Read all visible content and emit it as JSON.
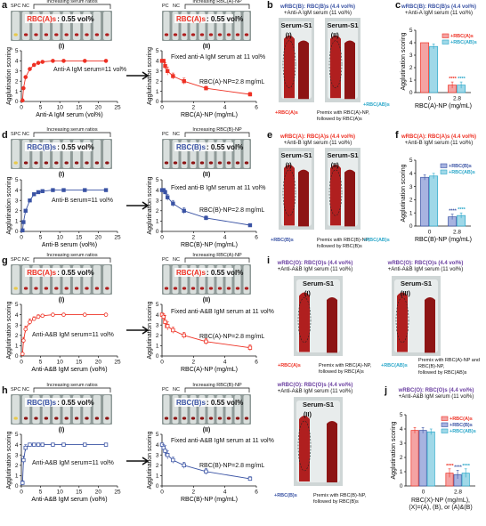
{
  "panels": {
    "a": {
      "letter": "a",
      "band": "Increasing serum ratios",
      "spc": "SPC",
      "nc": "NC",
      "rbc_label": "RBC(A)s",
      "vol": ": 0.55 vol%",
      "roman": "(I)",
      "annot": "Anti-A IgM serum=11 vol%"
    },
    "a2": {
      "pc": "PC",
      "nc": "NC",
      "band": "Increasing RBC(A)-NP",
      "rbc_label": "RBC(A)s",
      "vol": ": 0.55 vol%",
      "roman": "(II)",
      "annot1": "Fixed anti-A IgM serum at 11 vol%",
      "annot2": "RBC(A)-NP=2.8 mg/mL"
    },
    "b": {
      "letter": "b",
      "title1": "wRBC(B): RBC(B)s (4.4 vol%)",
      "title2": "+Anti-A IgM serum (11 vol%)",
      "tube1": "Serum-S1",
      "tube2": "Serum-S1",
      "r1": "(I)",
      "r2": "(II)",
      "lab1": "+RBC(A)s",
      "lab2": "+RBC(AB)s",
      "premix1": "Premix with RBC(A)-NP,",
      "premix2": "followed by RBC(A)s"
    },
    "c": {
      "letter": "c",
      "title1": "wRBC(B): RBC(B)s (4.4 vol%)",
      "title2": "+Anti-A IgM serum (11 vol%)",
      "legend": [
        "+RBC(A)s",
        "+RBC(AB)s"
      ]
    },
    "d": {
      "letter": "d",
      "band": "Increasing serum ratios",
      "spc": "SPC",
      "nc": "NC",
      "rbc_label": "RBC(B)s",
      "vol": ": 0.55 vol%",
      "roman": "(I)",
      "annot": "Anti-B serum=11 vol%"
    },
    "d2": {
      "pc": "PC",
      "nc": "NC",
      "band": "Increasing RBC(B)-NP",
      "rbc_label": "RBC(B)s",
      "vol": ": 0.55 vol%",
      "roman": "(II)",
      "annot1": "Fixed anti-B IgM serum at 11 vol%",
      "annot2": "RBC(B)-NP=2.8 mg/mL"
    },
    "e": {
      "letter": "e",
      "title1": "wRBC(A): RBC(A)s (4.4 vol%)",
      "title2": "+Anti-B IgM serum (11 vol%)",
      "tube1": "Serum-S1",
      "tube2": "Serum-S1",
      "r1": "(I)",
      "r2": "(II)",
      "lab1": "+RBC(B)s",
      "lab2": "+RBC(AB)s",
      "premix1": "Premix with RBC(B)-NP,",
      "premix2": "followed by RBC(B)s"
    },
    "f": {
      "letter": "f",
      "title1": "wRBC(A): RBC(A)s (4.4 vol%)",
      "title2": "+Anti-B IgM serum (11 vol%)",
      "legend": [
        "+RBC(B)s",
        "+RBC(AB)s"
      ]
    },
    "g": {
      "letter": "g",
      "band": "Increasing serum ratios",
      "spc": "SPC",
      "nc": "NC",
      "rbc_label": "RBC(A)s",
      "vol": ": 0.55 vol%",
      "roman": "(I)",
      "annot": "Anti-A&B IgM serum=11 vol%"
    },
    "g2": {
      "pc": "PC",
      "nc": "NC",
      "band": "Increasing RBC(A)-NP",
      "rbc_label": "RBC(A)s",
      "vol": ": 0.55 vol%",
      "roman": "(II)",
      "annot1": "Fixed anti-A&B IgM serum at 11 vol%",
      "annot2": "RBC(A)-NP=2.8 mg/mL"
    },
    "h": {
      "letter": "h",
      "band": "Increasing serum ratios",
      "spc": "SPC",
      "nc": "NC",
      "rbc_label": "RBC(B)s",
      "vol": ": 0.55 vol%",
      "roman": "(I)",
      "annot": "Anti-A&B IgM serum=11 vol%"
    },
    "h2": {
      "pc": "PC",
      "nc": "NC",
      "band": "Increasing RBC(B)-NP",
      "rbc_label": "RBC(B)s",
      "vol": ": 0.55 vol%",
      "roman": "(II)",
      "annot1": "Fixed anti-A&B IgM serum at 11 vol%",
      "annot2": "RBC(B)-NP=2.8 mg/mL"
    },
    "i": {
      "letter": "i",
      "title1": "wRBC(O): RBC(O)s (4.4 vol%)",
      "title2": "+Anti-A&B IgM serum (11 vol%)",
      "tube": "Serum-S1",
      "r1": "(I)",
      "r3": "(III)",
      "lab1": "+RBC(A)s",
      "lab3": "+RBC(AB)s",
      "premix1": "Premix with RBC(A)-NP,",
      "premix2": "followed by RBC(A)s",
      "premix3": "Premix with RBC(A)-NP and",
      "premix4": "RBC(B)-NP,",
      "premix5": "followed by RBC(AB)s"
    },
    "i2": {
      "title1": "wRBC(O): RBC(O)s (4.4 vol%)",
      "title2": "+Anti-A&B IgM serum (11 vol%)",
      "tube": "Serum-S1",
      "r2": "(II)",
      "lab2": "+RBC(B)s",
      "premix1": "Premix with RBC(B)-NP,",
      "premix2": "followed by RBC(B)s"
    },
    "j": {
      "letter": "j",
      "title1": "wRBC(O): RBC(O)s (4.4 vol%)",
      "title2": "+Anti-A&B IgM serum (11 vol%)",
      "legend": [
        "+RBC(A)s",
        "+RBC(B)s",
        "+RBC(AB)s"
      ],
      "xlab1": "RBC(X)-NP (mg/mL),",
      "xlab2": "(X)=(A), (B), or (A)&(B)"
    }
  },
  "chart_data": [
    {
      "id": "a-I",
      "type": "line",
      "xlabel": "Anti-A IgM serum (vol%)",
      "ylabel": "Agglutination scoring",
      "xlim": [
        0,
        25
      ],
      "ylim": [
        0,
        5
      ],
      "xticks": [
        0,
        5,
        10,
        15,
        20,
        25
      ],
      "yticks": [
        0,
        1,
        2,
        3,
        4,
        5
      ],
      "color": "#ee3124",
      "marker": "filled-circle",
      "x": [
        0.3,
        0.55,
        1.1,
        2.2,
        3.3,
        4.4,
        5.5,
        8.2,
        11,
        16.5,
        22
      ],
      "y": [
        0.1,
        1.3,
        2.4,
        3.2,
        3.6,
        3.8,
        3.9,
        4,
        4,
        4,
        4
      ]
    },
    {
      "id": "a-II",
      "type": "line",
      "xlabel": "RBC(A)-NP (mg/mL)",
      "ylabel": "Agglutination scoring",
      "xlim": [
        0,
        6
      ],
      "ylim": [
        0,
        5
      ],
      "xticks": [
        0,
        2,
        4,
        6
      ],
      "yticks": [
        0,
        1,
        2,
        3,
        4,
        5
      ],
      "color": "#ee3124",
      "marker": "filled-square",
      "x": [
        0,
        0.1,
        0.2,
        0.35,
        0.7,
        1.4,
        2.8,
        5.6
      ],
      "y": [
        4,
        4,
        3.5,
        3,
        2.5,
        2,
        1.3,
        0.7
      ],
      "err": [
        0,
        0,
        0.3,
        0.4,
        0.3,
        0.3,
        0.2,
        0.2
      ]
    },
    {
      "id": "c",
      "type": "bar",
      "ylabel": "Agglutination scoring",
      "xlabel": "RBC(A)-NP (mg/mL)",
      "categories": [
        "0",
        "2.8"
      ],
      "ylim": [
        0,
        5
      ],
      "yticks": [
        0,
        1,
        2,
        3,
        4,
        5
      ],
      "series": [
        {
          "name": "+RBC(A)s",
          "values": [
            4,
            0.6
          ],
          "err": [
            0,
            0.25
          ],
          "color": "#f4a3a3",
          "edge": "#ee3124"
        },
        {
          "name": "+RBC(AB)s",
          "values": [
            3.7,
            0.6
          ],
          "err": [
            0.2,
            0.25
          ],
          "color": "#9fd8e8",
          "edge": "#2aa7c9"
        }
      ],
      "sig": "****"
    },
    {
      "id": "d-I",
      "type": "line",
      "xlabel": "Anti-B serum (vol%)",
      "ylabel": "Agglutination scoring",
      "xlim": [
        0,
        25
      ],
      "ylim": [
        0,
        5
      ],
      "xticks": [
        0,
        5,
        10,
        15,
        20,
        25
      ],
      "yticks": [
        0,
        1,
        2,
        3,
        4,
        5
      ],
      "color": "#3a53a4",
      "marker": "filled-square",
      "x": [
        0.3,
        0.55,
        1.1,
        2.2,
        3.3,
        4.4,
        5.5,
        8.2,
        11,
        16.5,
        22
      ],
      "y": [
        0.1,
        0.9,
        2,
        3,
        3.6,
        3.8,
        3.9,
        4,
        4,
        4,
        4
      ]
    },
    {
      "id": "d-II",
      "type": "line",
      "xlabel": "RBC(B)-NP (mg/mL)",
      "ylabel": "Agglutination scoring",
      "xlim": [
        0,
        6
      ],
      "ylim": [
        0,
        5
      ],
      "xticks": [
        0,
        2,
        4,
        6
      ],
      "yticks": [
        0,
        1,
        2,
        3,
        4,
        5
      ],
      "color": "#3a53a4",
      "marker": "filled-square",
      "x": [
        0,
        0.1,
        0.2,
        0.35,
        0.7,
        1.4,
        2.8,
        5.6
      ],
      "y": [
        4,
        4,
        3.8,
        3.3,
        2.7,
        2,
        1.3,
        0.6
      ],
      "err": [
        0,
        0,
        0.2,
        0.3,
        0.3,
        0.3,
        0.2,
        0.1
      ]
    },
    {
      "id": "f",
      "type": "bar",
      "ylabel": "Agglutination scoring",
      "xlabel": "RBC(B)-NP (mg/mL)",
      "categories": [
        "0",
        "2.8"
      ],
      "ylim": [
        0,
        5
      ],
      "yticks": [
        0,
        1,
        2,
        3,
        4,
        5
      ],
      "series": [
        {
          "name": "+RBC(B)s",
          "values": [
            3.7,
            0.7
          ],
          "err": [
            0.2,
            0.2
          ],
          "color": "#a7b3e0",
          "edge": "#3a53a4"
        },
        {
          "name": "+RBC(AB)s",
          "values": [
            3.8,
            0.8
          ],
          "err": [
            0.2,
            0.2
          ],
          "color": "#9fd8e8",
          "edge": "#2aa7c9"
        }
      ],
      "sig": "****"
    },
    {
      "id": "g-I",
      "type": "line",
      "xlabel": "Anti-A&B IgM serum (vol%)",
      "ylabel": "Agglutination scoring",
      "xlim": [
        0,
        25
      ],
      "ylim": [
        0,
        5
      ],
      "xticks": [
        0,
        5,
        10,
        15,
        20,
        25
      ],
      "yticks": [
        0,
        1,
        2,
        3,
        4,
        5
      ],
      "color": "#ee3124",
      "marker": "open-circle",
      "x": [
        0.3,
        0.55,
        1.1,
        2.2,
        3.3,
        4.4,
        5.5,
        8.2,
        11,
        16.5,
        22
      ],
      "y": [
        0.2,
        1.5,
        2.6,
        3.3,
        3.6,
        3.8,
        3.9,
        4,
        4,
        4,
        4
      ],
      "err": [
        0.1,
        0.3,
        0.3,
        0.3,
        0.2,
        0.2,
        0.1,
        0,
        0,
        0,
        0
      ]
    },
    {
      "id": "g-II",
      "type": "line",
      "xlabel": "RBC(A)-NP (mg/mL)",
      "ylabel": "Agglutination scoring",
      "xlim": [
        0,
        6
      ],
      "ylim": [
        0,
        5
      ],
      "xticks": [
        0,
        2,
        4,
        6
      ],
      "yticks": [
        0,
        1,
        2,
        3,
        4,
        5
      ],
      "color": "#ee3124",
      "marker": "open-square",
      "x": [
        0,
        0.1,
        0.2,
        0.35,
        0.7,
        1.4,
        2.8,
        5.6
      ],
      "y": [
        4,
        3.8,
        3.3,
        2.9,
        2.5,
        2,
        1.4,
        0.8
      ],
      "err": [
        0,
        0.3,
        0.6,
        0.4,
        0.3,
        0.3,
        0.3,
        0.3
      ]
    },
    {
      "id": "h-I",
      "type": "line",
      "xlabel": "Anti-A&B IgM serum (vol%)",
      "ylabel": "Agglutination scoring",
      "xlim": [
        0,
        25
      ],
      "ylim": [
        0,
        5
      ],
      "xticks": [
        0,
        5,
        10,
        15,
        20,
        25
      ],
      "yticks": [
        0,
        1,
        2,
        3,
        4,
        5
      ],
      "color": "#3a53a4",
      "marker": "open-square",
      "x": [
        0.3,
        0.55,
        1.1,
        2.2,
        3.3,
        4.4,
        5.5,
        8.2,
        11,
        16.5,
        22
      ],
      "y": [
        0.3,
        2.5,
        3.7,
        4,
        4,
        4,
        4,
        4,
        4,
        4,
        4
      ],
      "err": [
        0.2,
        0.4,
        0.3,
        0.1,
        0,
        0,
        0,
        0,
        0,
        0,
        0
      ]
    },
    {
      "id": "h-II",
      "type": "line",
      "xlabel": "RBC(B)-NP (mg/mL)",
      "ylabel": "Agglutination scoring",
      "xlim": [
        0,
        6
      ],
      "ylim": [
        0,
        5
      ],
      "xticks": [
        0,
        2,
        4,
        6
      ],
      "yticks": [
        0,
        1,
        2,
        3,
        4,
        5
      ],
      "color": "#3a53a4",
      "marker": "open-square",
      "x": [
        0,
        0.1,
        0.2,
        0.35,
        0.7,
        1.4,
        2.8,
        5.6
      ],
      "y": [
        4,
        3.7,
        3.4,
        3,
        2.5,
        2,
        1.4,
        0.7
      ],
      "err": [
        0,
        0.3,
        0.5,
        0.4,
        0.3,
        0.3,
        0.3,
        0.2
      ]
    },
    {
      "id": "j",
      "type": "bar",
      "ylabel": "Agglutination scoring",
      "categories": [
        "0",
        "2.8"
      ],
      "ylim": [
        0,
        5
      ],
      "yticks": [
        0,
        1,
        2,
        3,
        4,
        5
      ],
      "series": [
        {
          "name": "+RBC(A)s",
          "values": [
            3.9,
            0.9
          ],
          "err": [
            0.2,
            0.3
          ],
          "color": "#f4a3a3",
          "edge": "#ee3124"
        },
        {
          "name": "+RBC(B)s",
          "values": [
            3.9,
            0.8
          ],
          "err": [
            0.2,
            0.3
          ],
          "color": "#a7b3e0",
          "edge": "#3a53a4"
        },
        {
          "name": "+RBC(AB)s",
          "values": [
            3.8,
            0.9
          ],
          "err": [
            0.2,
            0.3
          ],
          "color": "#9fd8e8",
          "edge": "#2aa7c9"
        }
      ],
      "sig": "****"
    }
  ]
}
